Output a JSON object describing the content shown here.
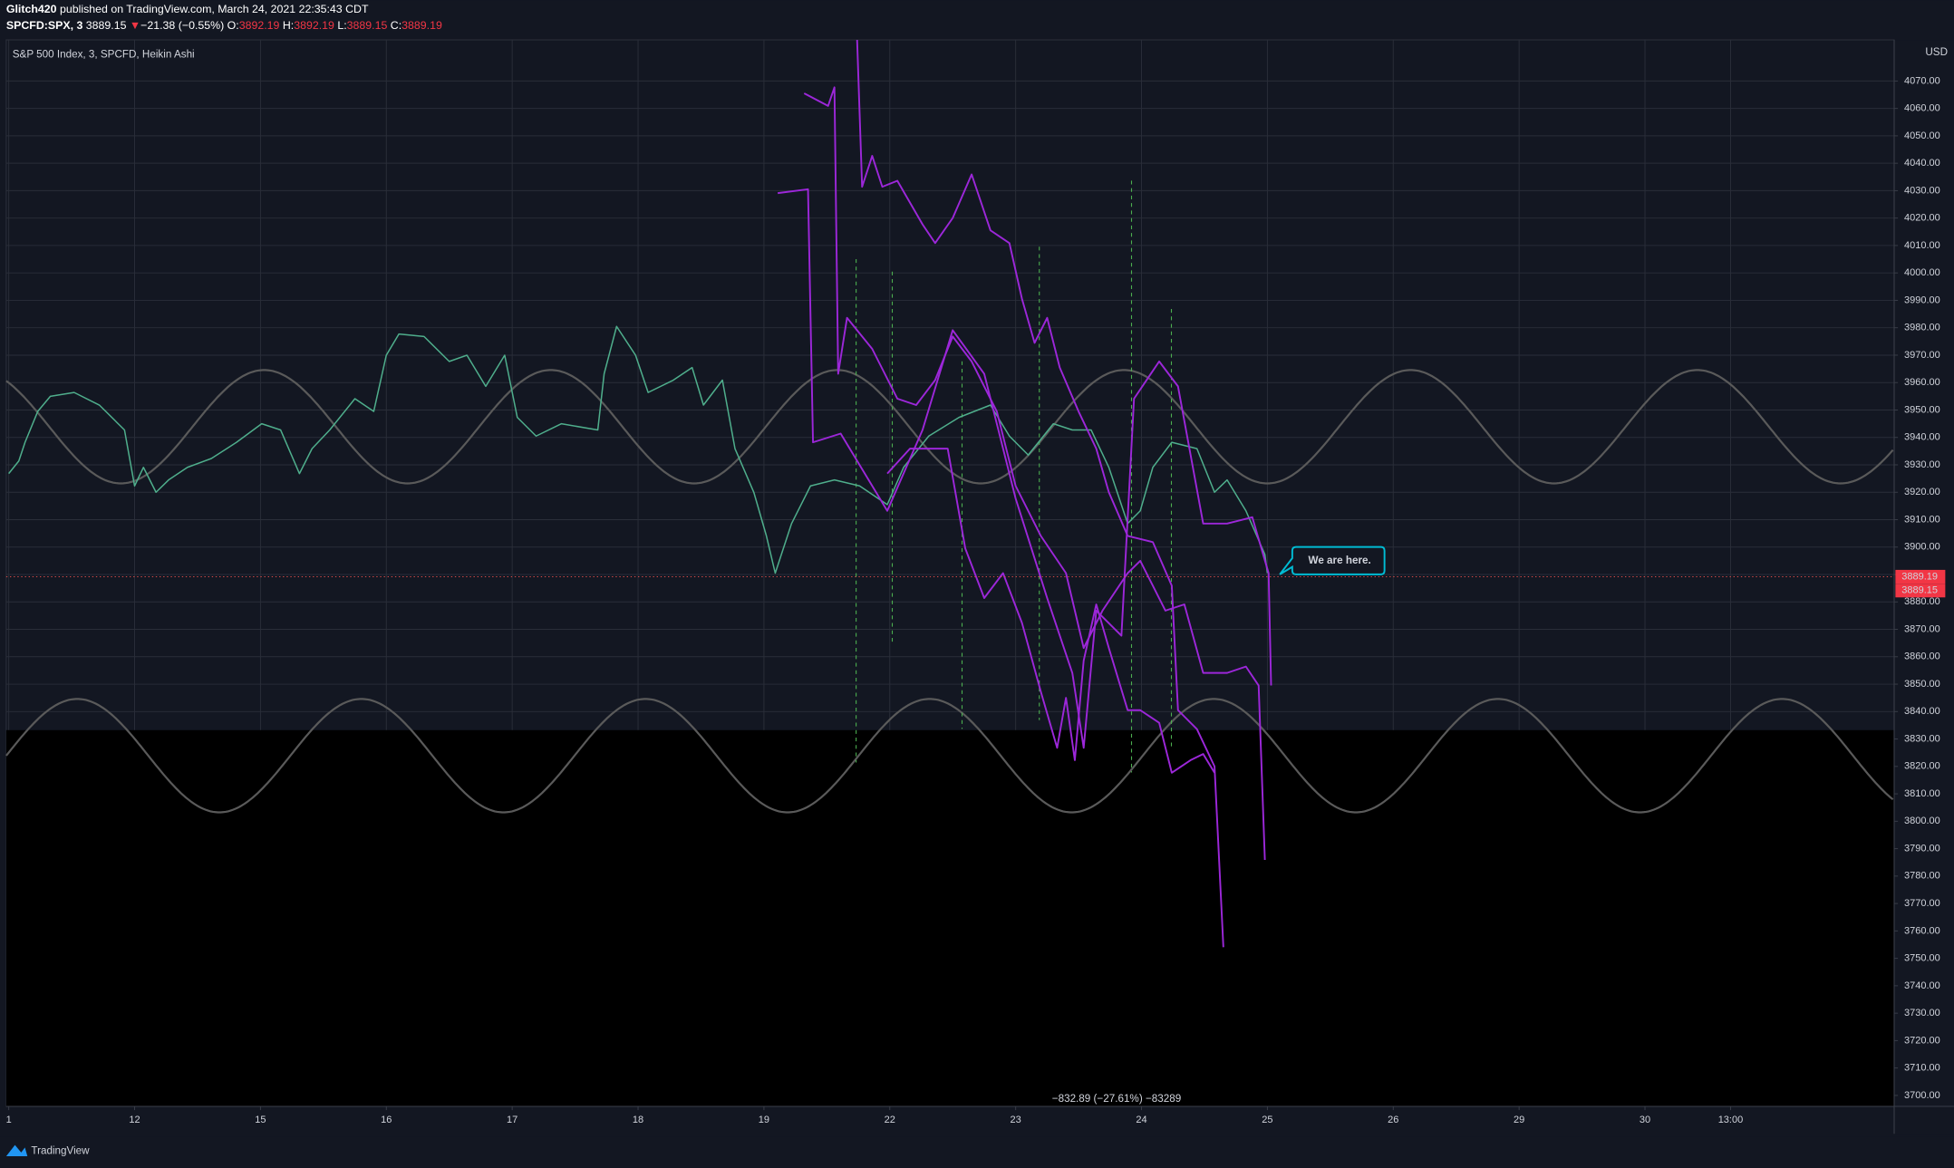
{
  "chart_data": {
    "type": "line",
    "header": {
      "author": "Glitch420",
      "published": "published on TradingView.com, March 24, 2021 22:35:43 CDT",
      "symbol": "SPCFD:SPX, 3",
      "last": "3889.15",
      "arrow": "▼",
      "change": "−21.38 (−0.55%)",
      "ohlc": [
        {
          "key": "O:",
          "value": "3892.19"
        },
        {
          "key": "H:",
          "value": "3892.19"
        },
        {
          "key": "L:",
          "value": "3889.15"
        },
        {
          "key": "C:",
          "value": "3889.19"
        }
      ]
    },
    "legend_text": "S&P 500 Index, 3, SPCFD, Heikin Ashi",
    "currency": "USD",
    "annotation": "We are here.",
    "measure_label": "−832.89 (−27.61%) −83289",
    "brand": "TradingView",
    "price_labels": [
      3889.19,
      3889.15
    ],
    "price_line": 3889.15,
    "xlim": [
      -0.02,
      14.98
    ],
    "ylim": [
      3696,
      4085
    ],
    "xticks": [
      {
        "value": 0,
        "label": "1"
      },
      {
        "value": 1,
        "label": "12"
      },
      {
        "value": 2,
        "label": "15"
      },
      {
        "value": 3,
        "label": "16"
      },
      {
        "value": 4,
        "label": "17"
      },
      {
        "value": 5,
        "label": "18"
      },
      {
        "value": 6,
        "label": "19"
      },
      {
        "value": 7,
        "label": "22"
      },
      {
        "value": 8,
        "label": "23"
      },
      {
        "value": 9,
        "label": "24"
      },
      {
        "value": 10,
        "label": "25"
      },
      {
        "value": 11,
        "label": "26"
      },
      {
        "value": 12,
        "label": "29"
      },
      {
        "value": 13,
        "label": "30"
      },
      {
        "value": 13.68,
        "label": "13:00"
      }
    ],
    "yticks": [
      {
        "value": 3700,
        "label": "3700.00"
      },
      {
        "value": 3710,
        "label": "3710.00"
      },
      {
        "value": 3720,
        "label": "3720.00"
      },
      {
        "value": 3730,
        "label": "3730.00"
      },
      {
        "value": 3740,
        "label": "3740.00"
      },
      {
        "value": 3750,
        "label": "3750.00"
      },
      {
        "value": 3760,
        "label": "3760.00"
      },
      {
        "value": 3770,
        "label": "3770.00"
      },
      {
        "value": 3780,
        "label": "3780.00"
      },
      {
        "value": 3790,
        "label": "3790.00"
      },
      {
        "value": 3800,
        "label": "3800.00"
      },
      {
        "value": 3810,
        "label": "3810.00"
      },
      {
        "value": 3820,
        "label": "3820.00"
      },
      {
        "value": 3830,
        "label": "3830.00"
      },
      {
        "value": 3840,
        "label": "3840.00"
      },
      {
        "value": 3850,
        "label": "3850.00"
      },
      {
        "value": 3860,
        "label": "3860.00"
      },
      {
        "value": 3870,
        "label": "3870.00"
      },
      {
        "value": 3880,
        "label": "3880.00"
      },
      {
        "value": 3890,
        "label": "3890.00"
      },
      {
        "value": 3900,
        "label": "3900.00"
      },
      {
        "value": 3910,
        "label": "3910.00"
      },
      {
        "value": 3920,
        "label": "3920.00"
      },
      {
        "value": 3930,
        "label": "3930.00"
      },
      {
        "value": 3940,
        "label": "3940.00"
      },
      {
        "value": 3950,
        "label": "3950.00"
      },
      {
        "value": 3960,
        "label": "3960.00"
      },
      {
        "value": 3970,
        "label": "3970.00"
      },
      {
        "value": 3980,
        "label": "3980.00"
      },
      {
        "value": 3990,
        "label": "3990.00"
      },
      {
        "value": 4000,
        "label": "4000.00"
      },
      {
        "value": 4010,
        "label": "4010.00"
      },
      {
        "value": 4020,
        "label": "4020.00"
      },
      {
        "value": 4030,
        "label": "4030.00"
      },
      {
        "value": 4040,
        "label": "4040.00"
      },
      {
        "value": 4050,
        "label": "4050.00"
      },
      {
        "value": 4060,
        "label": "4060.00"
      },
      {
        "value": 4070,
        "label": "4070.00"
      }
    ],
    "grid": true,
    "series": [
      {
        "color": "#4fae8c",
        "x": [
          0,
          0.08,
          0.13,
          0.23,
          0.33,
          0.52,
          0.72,
          0.92,
          1.0,
          1.07,
          1.17,
          1.27,
          1.42,
          1.61,
          1.81,
          2.01,
          2.16,
          2.31,
          2.41,
          2.55,
          2.75,
          2.9,
          3.0,
          3.1,
          3.3,
          3.5,
          3.64,
          3.79,
          3.94,
          4.04,
          4.19,
          4.39,
          4.68,
          4.73,
          4.83,
          4.98,
          5.08,
          5.28,
          5.43,
          5.52,
          5.67,
          5.77,
          5.92,
          6.02,
          6.09,
          6.22,
          6.37,
          6.56,
          6.76,
          6.98,
          7.11,
          7.31,
          7.55,
          7.8,
          7.95,
          8.1,
          8.3,
          8.45,
          8.6,
          8.74,
          8.89,
          8.99,
          9.09,
          9.24,
          9.44,
          9.58,
          9.68,
          9.83,
          9.98,
          10.0
        ],
        "values": [
          3926.8,
          3931.4,
          3938.2,
          3949.5,
          3955,
          3956.4,
          3951.8,
          3942.7,
          3922.3,
          3929.1,
          3920,
          3924.5,
          3929.1,
          3932.3,
          3938.2,
          3945,
          3942.7,
          3926.8,
          3935.9,
          3942.7,
          3954.1,
          3949.5,
          3970,
          3977.7,
          3976.8,
          3967.7,
          3970,
          3958.6,
          3970,
          3947.3,
          3940.5,
          3945,
          3942.7,
          3963.2,
          3980.5,
          3970,
          3956.4,
          3960.9,
          3965.5,
          3951.8,
          3960.9,
          3935.9,
          3920,
          3904.1,
          3890.5,
          3908.6,
          3922.3,
          3924.5,
          3922.3,
          3915.5,
          3929.1,
          3940.5,
          3947.3,
          3951.8,
          3940.5,
          3933.6,
          3945,
          3942.7,
          3942.7,
          3929.1,
          3908.6,
          3913.2,
          3929.1,
          3938.2,
          3935.9,
          3920,
          3924.5,
          3913.2,
          3897.3,
          3890.5
        ]
      },
      {
        "color": "#9c27d9",
        "x": [
          6.11,
          6.35,
          6.39,
          6.61,
          6.98,
          7.26,
          7.5,
          7.75,
          8.0,
          8.25,
          8.45,
          8.54,
          8.64,
          8.84,
          8.94,
          9.14,
          9.29,
          9.49,
          9.68,
          9.88,
          10.01,
          10.03
        ],
        "values": [
          4029.1,
          4030.5,
          3938.2,
          3941.4,
          3913.2,
          3942.7,
          3979.1,
          3963.2,
          3917.7,
          3881.4,
          3854.1,
          3826.8,
          3876.8,
          3867.7,
          3954.1,
          3967.7,
          3958.6,
          3908.6,
          3908.6,
          3910.9,
          3890.5,
          3849.5
        ]
      },
      {
        "color": "#9c27d9",
        "x": [
          6.32,
          6.51,
          6.56,
          6.59,
          6.66,
          6.86,
          7.06,
          7.21,
          7.36,
          7.5,
          7.65,
          7.85,
          8.0,
          8.2,
          8.4,
          8.54,
          8.69,
          8.89,
          8.99,
          9.19,
          9.34,
          9.49,
          9.68,
          9.83,
          9.93,
          9.98
        ],
        "values": [
          4065.5,
          4060.9,
          4067.7,
          3963.2,
          3983.6,
          3972.3,
          3954.1,
          3951.8,
          3960.9,
          3976.8,
          3967.7,
          3949.5,
          3922.3,
          3904.1,
          3890.5,
          3863.2,
          3876.8,
          3890.5,
          3895,
          3876.8,
          3879.1,
          3854.1,
          3854.1,
          3856.4,
          3849.5,
          3785.9
        ]
      },
      {
        "color": "#9c27d9",
        "x": [
          6.74,
          6.78,
          6.86,
          6.94,
          7.06,
          7.26,
          7.36,
          7.5,
          7.65,
          7.8,
          7.95,
          8.05,
          8.15,
          8.25,
          8.35,
          8.5,
          8.64,
          8.74,
          8.89,
          9.09,
          9.24,
          9.29,
          9.44,
          9.58,
          9.65
        ],
        "values": [
          4085,
          4031.4,
          4042.7,
          4031.4,
          4033.6,
          4017.7,
          4010.9,
          4020,
          4035.9,
          4015.5,
          4010.9,
          3990.5,
          3974.5,
          3983.6,
          3965.5,
          3949.5,
          3935.9,
          3920,
          3904.1,
          3901.8,
          3885.9,
          3840.5,
          3833.6,
          3820,
          3754.1
        ]
      },
      {
        "color": "#9c27d9",
        "x": [
          6.98,
          7.16,
          7.46,
          7.6,
          7.75,
          7.9,
          8.05,
          8.2,
          8.33,
          8.4,
          8.47,
          8.54,
          8.64,
          8.74,
          8.89,
          8.99,
          9.14,
          9.24,
          9.39,
          9.49,
          9.58
        ],
        "values": [
          3926.8,
          3935.9,
          3935.9,
          3899.5,
          3881.4,
          3890.5,
          3872.3,
          3847.3,
          3826.8,
          3845,
          3822.3,
          3858.6,
          3879.1,
          3863.2,
          3840.5,
          3840.5,
          3835.9,
          3817.7,
          3822.3,
          3824.5,
          3817.7
        ]
      }
    ]
  }
}
